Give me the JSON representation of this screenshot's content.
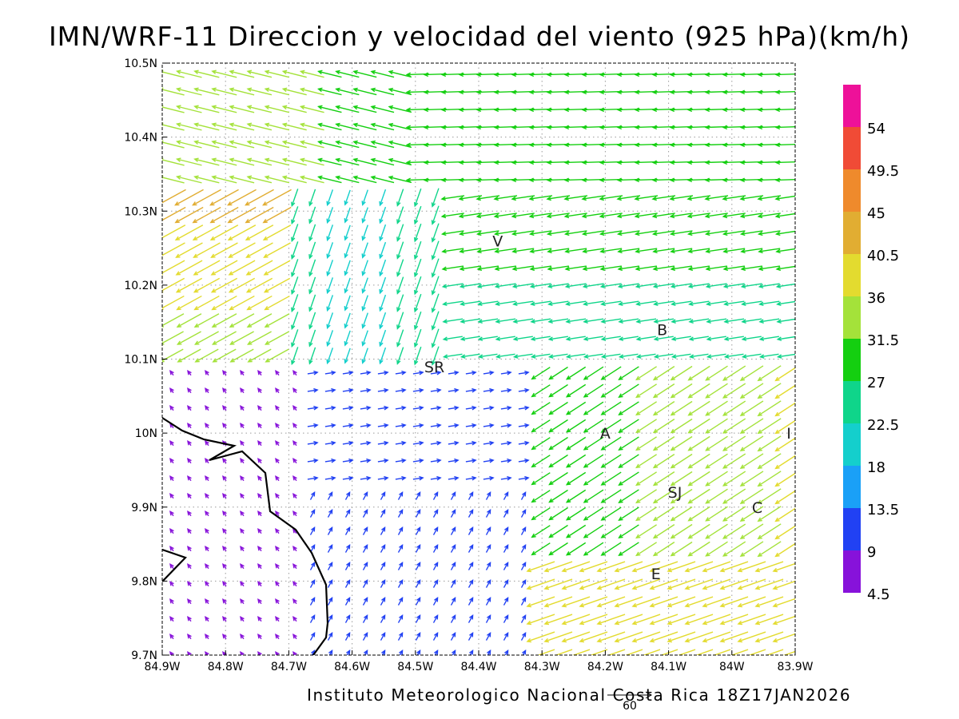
{
  "title": "IMN/WRF-11 Direccion y velocidad del viento (925 hPa)(km/h)",
  "footer": "Instituto Meteorologico Nacional Costa Rica  18Z17JAN2026",
  "reference_vector": {
    "label": "60",
    "speed": 60
  },
  "map": {
    "x_ticks": [
      "84.9W",
      "84.8W",
      "84.7W",
      "84.6W",
      "84.5W",
      "84.4W",
      "84.3W",
      "84.2W",
      "84.1W",
      "84W",
      "83.9W"
    ],
    "y_ticks": [
      "10.5N",
      "10.4N",
      "10.3N",
      "10.2N",
      "10.1N",
      "10N",
      "9.9N",
      "9.8N",
      "9.7N"
    ],
    "lon_range": [
      -84.9,
      -83.9
    ],
    "lat_range": [
      9.7,
      10.5
    ],
    "grid": "dotted",
    "places": [
      {
        "label": "V",
        "lon": -84.37,
        "lat": 10.26
      },
      {
        "label": "SR",
        "lon": -84.47,
        "lat": 10.09
      },
      {
        "label": "B",
        "lon": -84.11,
        "lat": 10.14
      },
      {
        "label": "A",
        "lon": -84.2,
        "lat": 10.0
      },
      {
        "label": "I",
        "lon": -83.91,
        "lat": 10.0
      },
      {
        "label": "SJ",
        "lon": -84.09,
        "lat": 9.92
      },
      {
        "label": "C",
        "lon": -83.96,
        "lat": 9.9
      },
      {
        "label": "E",
        "lon": -84.12,
        "lat": 9.81
      }
    ]
  },
  "legend": {
    "labels": [
      "54",
      "49.5",
      "45",
      "40.5",
      "36",
      "31.5",
      "27",
      "22.5",
      "18",
      "13.5",
      "9",
      "4.5"
    ],
    "colors": [
      "#ee1199",
      "#f04b36",
      "#ef8a2c",
      "#e1ad32",
      "#e3db2f",
      "#a4e23a",
      "#14cf10",
      "#0fd58a",
      "#14cfcc",
      "#1aa0f7",
      "#2141f3",
      "#8712da"
    ]
  },
  "wind_field": {
    "note": "stylized streamline sketch of the 925 hPa wind vectors",
    "speed_scale_kmh": [
      4.5,
      54
    ]
  }
}
